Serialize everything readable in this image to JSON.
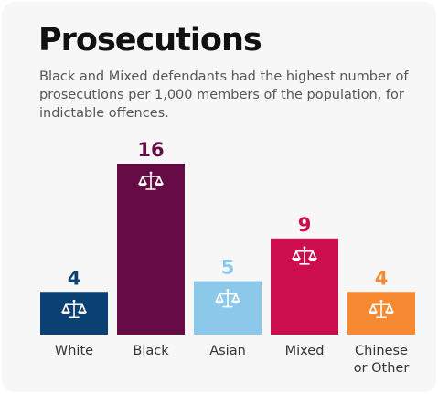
{
  "header": {
    "title": "Prosecutions",
    "subtitle": "Black and Mixed defendants had the highest number of prosecutions per 1,000 members of the population, for indictable offences."
  },
  "chart_data": {
    "type": "bar",
    "title": "Prosecutions",
    "subtitle": "Black and Mixed defendants had the highest number of prosecutions per 1,000 members of the population, for indictable offences.",
    "categories": [
      [
        "White"
      ],
      [
        "Black"
      ],
      [
        "Asian"
      ],
      [
        "Mixed"
      ],
      [
        "Chinese",
        "or Other"
      ]
    ],
    "values": [
      4,
      16,
      5,
      9,
      4
    ],
    "colors": [
      "#0b4073",
      "#650c45",
      "#8cc8ea",
      "#cc0d4e",
      "#f58a32"
    ],
    "value_label_colors": [
      "#0b4073",
      "#650c45",
      "#8cc8ea",
      "#cc0d4e",
      "#f58a32"
    ],
    "icon": "scales-of-justice-icon",
    "ylim": [
      0,
      16
    ],
    "grid": false,
    "legend": "none"
  }
}
